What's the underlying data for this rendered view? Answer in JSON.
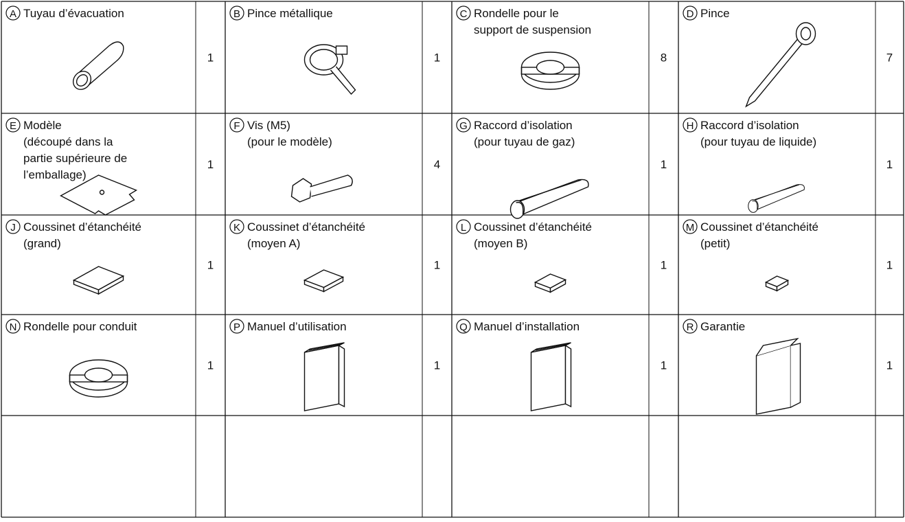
{
  "table": {
    "rows": [
      [
        {
          "letter": "A",
          "label": [
            "Tuyau d’évacuation"
          ],
          "quantity": 1
        },
        {
          "letter": "B",
          "label": [
            "Pince métallique"
          ],
          "quantity": 1
        },
        {
          "letter": "C",
          "label": [
            "Rondelle pour le",
            "support de suspension"
          ],
          "quantity": 8
        },
        {
          "letter": "D",
          "label": [
            "Pince"
          ],
          "quantity": 7
        }
      ],
      [
        {
          "letter": "E",
          "label": [
            "Modèle",
            "(découpé dans la",
            "partie supérieure de",
            "l’emballage)"
          ],
          "quantity": 1
        },
        {
          "letter": "F",
          "label": [
            "Vis (M5)",
            "(pour le modèle)"
          ],
          "quantity": 4
        },
        {
          "letter": "G",
          "label": [
            "Raccord d’isolation",
            "(pour tuyau de gaz)"
          ],
          "quantity": 1
        },
        {
          "letter": "H",
          "label": [
            "Raccord d’isolation",
            "(pour tuyau de liquide)"
          ],
          "quantity": 1
        }
      ],
      [
        {
          "letter": "J",
          "label": [
            "Coussinet d’étanchéité",
            "(grand)"
          ],
          "quantity": 1
        },
        {
          "letter": "K",
          "label": [
            "Coussinet d’étanchéité",
            "(moyen A)"
          ],
          "quantity": 1
        },
        {
          "letter": "L",
          "label": [
            "Coussinet d’étanchéité",
            "(moyen B)"
          ],
          "quantity": 1
        },
        {
          "letter": "M",
          "label": [
            "Coussinet d’étanchéité",
            "(petit)"
          ],
          "quantity": 1
        }
      ],
      [
        {
          "letter": "N",
          "label": [
            "Rondelle pour conduit"
          ],
          "quantity": 1
        },
        {
          "letter": "P",
          "label": [
            "Manuel d’utilisation"
          ],
          "quantity": 1
        },
        {
          "letter": "Q",
          "label": [
            "Manuel d’installation"
          ],
          "quantity": 1
        },
        {
          "letter": "R",
          "label": [
            "Garantie"
          ],
          "quantity": 1
        }
      ]
    ]
  }
}
